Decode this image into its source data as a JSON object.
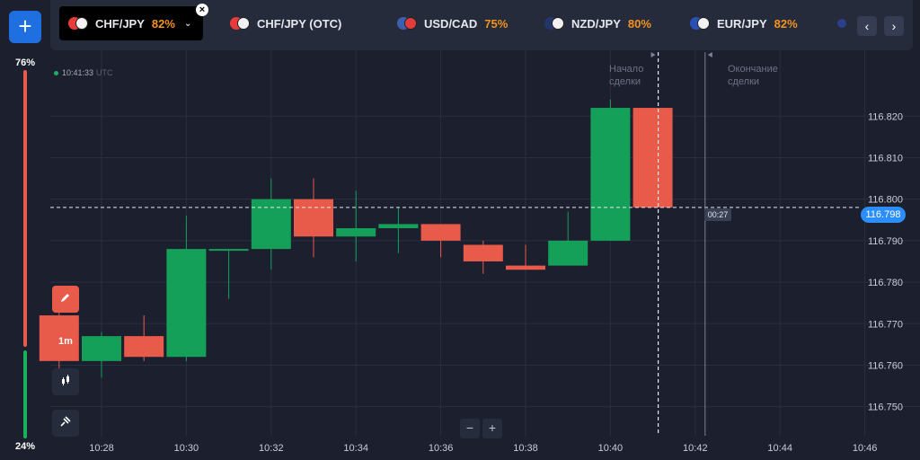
{
  "sidebar": {
    "add_label": "+",
    "up_percent": "76%",
    "down_percent": "24%"
  },
  "tabs": [
    {
      "label": "CHF/JPY",
      "payout": "82%",
      "active": true,
      "flag_a": "#e83b3b",
      "flag_b": "#f2f2f2"
    },
    {
      "label": "CHF/JPY (OTC)",
      "payout": "",
      "active": false,
      "flag_a": "#e83b3b",
      "flag_b": "#f2f2f2"
    },
    {
      "label": "USD/CAD",
      "payout": "75%",
      "active": false,
      "flag_a": "#3c5fb0",
      "flag_b": "#e23b3b"
    },
    {
      "label": "NZD/JPY",
      "payout": "80%",
      "active": false,
      "flag_a": "#23356b",
      "flag_b": "#f2f2f2"
    },
    {
      "label": "EUR/JPY",
      "payout": "82%",
      "active": false,
      "flag_a": "#2a4fb5",
      "flag_b": "#f2f2f2"
    }
  ],
  "nav": {
    "prev": "‹",
    "next": "›"
  },
  "time_readout": {
    "time": "10:41:33",
    "tz": "UTC"
  },
  "markers": {
    "start_line1": "Начало",
    "start_line2": "сделки",
    "end_line1": "Окончание",
    "end_line2": "сделки"
  },
  "tools": {
    "timeframe": "1m",
    "pencil_icon": "pencil-icon",
    "candles_icon": "candles-icon",
    "satellite_icon": "satellite-icon"
  },
  "zoom": {
    "minus": "−",
    "plus": "+"
  },
  "current_price": "116.798",
  "countdown": "00:27",
  "colors": {
    "up": "#15a05a",
    "down": "#e85a4a",
    "accent": "#2b8dff",
    "payout": "#f5931e"
  },
  "chart_data": {
    "type": "candlestick",
    "x_ticks": [
      "10:28",
      "10:30",
      "10:32",
      "10:34",
      "10:36",
      "10:38",
      "10:40",
      "10:42",
      "10:44",
      "10:46"
    ],
    "y_ticks": [
      "116.820",
      "116.810",
      "116.800",
      "116.790",
      "116.780",
      "116.770",
      "116.760",
      "116.750"
    ],
    "ylim": [
      116.743,
      116.835
    ],
    "candles": [
      {
        "time": "10:27",
        "open": 116.772,
        "high": 116.775,
        "low": 116.754,
        "close": 116.761
      },
      {
        "time": "10:28",
        "open": 116.761,
        "high": 116.768,
        "low": 116.757,
        "close": 116.767
      },
      {
        "time": "10:29",
        "open": 116.767,
        "high": 116.772,
        "low": 116.761,
        "close": 116.762
      },
      {
        "time": "10:30",
        "open": 116.762,
        "high": 116.796,
        "low": 116.761,
        "close": 116.788
      },
      {
        "time": "10:31",
        "open": 116.788,
        "high": 116.788,
        "low": 116.776,
        "close": 116.788
      },
      {
        "time": "10:32",
        "open": 116.788,
        "high": 116.805,
        "low": 116.783,
        "close": 116.8
      },
      {
        "time": "10:33",
        "open": 116.8,
        "high": 116.805,
        "low": 116.786,
        "close": 116.791
      },
      {
        "time": "10:34",
        "open": 116.791,
        "high": 116.802,
        "low": 116.785,
        "close": 116.793
      },
      {
        "time": "10:35",
        "open": 116.793,
        "high": 116.798,
        "low": 116.787,
        "close": 116.794
      },
      {
        "time": "10:36",
        "open": 116.794,
        "high": 116.794,
        "low": 116.786,
        "close": 116.79
      },
      {
        "time": "10:37",
        "open": 116.789,
        "high": 116.79,
        "low": 116.782,
        "close": 116.785
      },
      {
        "time": "10:38",
        "open": 116.784,
        "high": 116.789,
        "low": 116.783,
        "close": 116.783
      },
      {
        "time": "10:39",
        "open": 116.784,
        "high": 116.797,
        "low": 116.784,
        "close": 116.79
      },
      {
        "time": "10:40",
        "open": 116.79,
        "high": 116.824,
        "low": 116.79,
        "close": 116.822
      },
      {
        "time": "10:41",
        "open": 116.822,
        "high": 116.822,
        "low": 116.798,
        "close": 116.798
      }
    ],
    "trade_start": "10:41",
    "trade_end": "10:42",
    "grid": true
  }
}
